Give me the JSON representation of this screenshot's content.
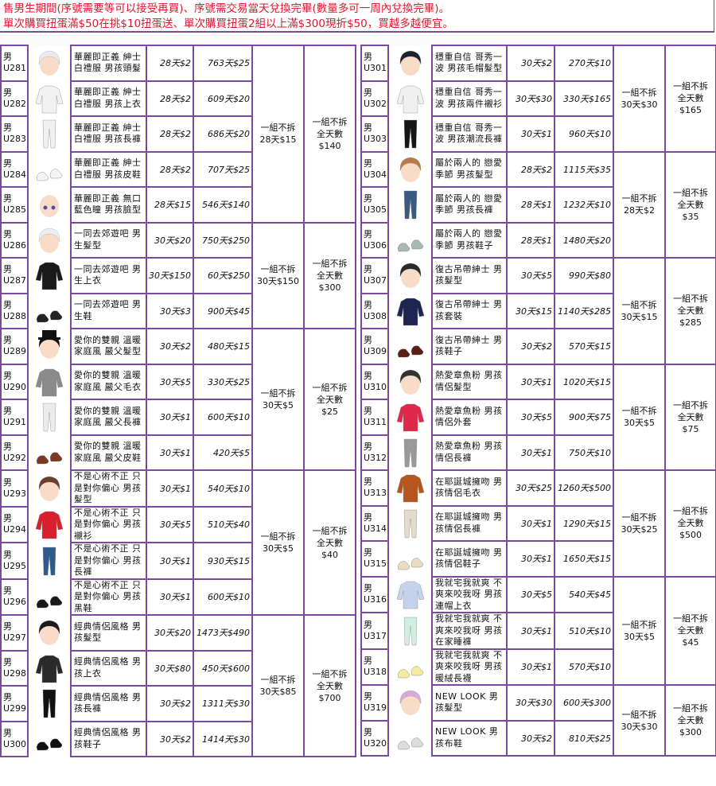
{
  "notice": {
    "line1": "售男生期間(序號需要等可以接受再買)、序號需交易當天兌換完畢(數量多可一周內兌換完畢)。",
    "line2": "單次購買扭蛋滿$50在挑$10扭蛋送、單次購買扭蛋2組以上滿$300現折$50，買越多越便宜。",
    "color": "#e2162e"
  },
  "border_color": "#7b4a9e",
  "tables": [
    {
      "groups": [
        {
          "set_price": [
            "一組不拆",
            "28天$15"
          ],
          "full_price": [
            "一組不拆",
            "全天數",
            "$140"
          ],
          "items": [
            {
              "gender": "男",
              "code": "U281",
              "name": "華麗即正義 紳士白禮服 男孩頭髮",
              "price_30": "28天$2",
              "price_full": "763天$25",
              "thumb": {
                "icon": "hair-icon",
                "color": "#e8e8f0"
              }
            },
            {
              "gender": "男",
              "code": "U282",
              "name": "華麗即正義 紳士白禮服 男孩上衣",
              "price_30": "28天$2",
              "price_full": "609天$20",
              "thumb": {
                "icon": "top-icon",
                "color": "#f2f2f2"
              }
            },
            {
              "gender": "男",
              "code": "U283",
              "name": "華麗即正義 紳士白禮服 男孩長褲",
              "price_30": "28天$2",
              "price_full": "686天$20",
              "thumb": {
                "icon": "pants-icon",
                "color": "#f0f0f0"
              }
            },
            {
              "gender": "男",
              "code": "U284",
              "name": "華麗即正義 紳士白禮服 男孩皮鞋",
              "price_30": "28天$2",
              "price_full": "707天$25",
              "thumb": {
                "icon": "shoes-icon",
                "color": "#f4f4f4"
              }
            },
            {
              "gender": "男",
              "code": "U285",
              "name": "華麗即正義 無口藍色瞳 男孩臉型",
              "price_30": "28天$15",
              "price_full": "546天$140",
              "thumb": {
                "icon": "face-icon",
                "color": "#f6c8a8"
              }
            }
          ]
        },
        {
          "set_price": [
            "一組不拆",
            "30天$150"
          ],
          "full_price": [
            "一組不拆",
            "全天數",
            "$300"
          ],
          "items": [
            {
              "gender": "男",
              "code": "U286",
              "name": "一同去郊遊吧 男生髮型",
              "price_30": "30天$20",
              "price_full": "750天$250",
              "thumb": {
                "icon": "hair-icon",
                "color": "#eeeeee"
              }
            },
            {
              "gender": "男",
              "code": "U287",
              "name": "一同去郊遊吧 男生上衣",
              "price_30": "30天$150",
              "price_full": "60天$250",
              "thumb": {
                "icon": "top-icon",
                "color": "#1a1a1a"
              }
            },
            {
              "gender": "男",
              "code": "U288",
              "name": "一同去郊遊吧 男生鞋",
              "price_30": "30天$3",
              "price_full": "900天$45",
              "thumb": {
                "icon": "shoes-icon",
                "color": "#222222"
              }
            }
          ]
        },
        {
          "set_price": [
            "一組不拆",
            "30天$5"
          ],
          "full_price": [
            "一組不拆",
            "全天數",
            "$25"
          ],
          "items": [
            {
              "gender": "男",
              "code": "U289",
              "name": "愛你的雙親 溫暖家庭風 嚴父髮型",
              "price_30": "30天$2",
              "price_full": "480天$15",
              "thumb": {
                "icon": "hat-icon",
                "color": "#111111"
              }
            },
            {
              "gender": "男",
              "code": "U290",
              "name": "愛你的雙親 溫暖家庭風 嚴父毛衣",
              "price_30": "30天$5",
              "price_full": "330天$25",
              "thumb": {
                "icon": "top-icon",
                "color": "#8a8a8a"
              }
            },
            {
              "gender": "男",
              "code": "U291",
              "name": "愛你的雙親 溫暖家庭風 嚴父長褲",
              "price_30": "30天$1",
              "price_full": "600天$10",
              "thumb": {
                "icon": "pants-icon",
                "color": "#ececec"
              }
            },
            {
              "gender": "男",
              "code": "U292",
              "name": "愛你的雙親 溫暖家庭風 嚴父皮鞋",
              "price_30": "30天$1",
              "price_full": "420天$5",
              "thumb": {
                "icon": "shoes-icon",
                "color": "#7a3a22"
              }
            }
          ]
        },
        {
          "set_price": [
            "一組不拆",
            "30天$5"
          ],
          "full_price": [
            "一組不拆",
            "全天數",
            "$40"
          ],
          "items": [
            {
              "gender": "男",
              "code": "U293",
              "name": "不是心術不正 只是對你偏心 男孩髮型",
              "price_30": "30天$1",
              "price_full": "540天$10",
              "thumb": {
                "icon": "hair-icon",
                "color": "#6b3f2a"
              }
            },
            {
              "gender": "男",
              "code": "U294",
              "name": "不是心術不正 只是對你偏心 男孩襯衫",
              "price_30": "30天$5",
              "price_full": "510天$40",
              "thumb": {
                "icon": "top-icon",
                "color": "#d8202c"
              }
            },
            {
              "gender": "男",
              "code": "U295",
              "name": "不是心術不正 只是對你偏心 男孩長褲",
              "price_30": "30天$1",
              "price_full": "930天$15",
              "thumb": {
                "icon": "pants-icon",
                "color": "#2e5a8c"
              }
            },
            {
              "gender": "男",
              "code": "U296",
              "name": "不是心術不正 只是對你偏心 男孩黑鞋",
              "price_30": "30天$1",
              "price_full": "600天$10",
              "thumb": {
                "icon": "shoes-icon",
                "color": "#1a1a1a"
              }
            }
          ]
        },
        {
          "set_price": [
            "一組不拆",
            "30天$85"
          ],
          "full_price": [
            "一組不拆",
            "全天數",
            "$700"
          ],
          "items": [
            {
              "gender": "男",
              "code": "U297",
              "name": "經典情侶風格 男孩髮型",
              "price_30": "30天$20",
              "price_full": "1473天$490",
              "thumb": {
                "icon": "hair-icon",
                "color": "#1c1c1c"
              }
            },
            {
              "gender": "男",
              "code": "U298",
              "name": "經典情侶風格 男孩上衣",
              "price_30": "30天$80",
              "price_full": "450天$600",
              "thumb": {
                "icon": "top-icon",
                "color": "#2a2a2a"
              }
            },
            {
              "gender": "男",
              "code": "U299",
              "name": "經典情侶風格 男孩長褲",
              "price_30": "30天$2",
              "price_full": "1311天$30",
              "thumb": {
                "icon": "pants-icon",
                "color": "#111111"
              }
            },
            {
              "gender": "男",
              "code": "U300",
              "name": "經典情侶風格 男孩鞋子",
              "price_30": "30天$2",
              "price_full": "1414天$30",
              "thumb": {
                "icon": "boots-icon",
                "color": "#111111"
              }
            }
          ]
        }
      ]
    },
    {
      "groups": [
        {
          "set_price": [
            "一組不拆",
            "30天$30"
          ],
          "full_price": [
            "一組不拆",
            "全天數",
            "$165"
          ],
          "items": [
            {
              "gender": "男",
              "code": "U301",
              "name": "穩重自信 哥秀一波 男孩毛帽髮型",
              "price_30": "30天$2",
              "price_full": "270天$10",
              "thumb": {
                "icon": "beanie-icon",
                "color": "#1d2233"
              }
            },
            {
              "gender": "男",
              "code": "U302",
              "name": "穩重自信 哥秀一波 男孩兩件襯衫",
              "price_30": "30天$30",
              "price_full": "330天$165",
              "thumb": {
                "icon": "top-icon",
                "color": "#f0f0f0"
              }
            },
            {
              "gender": "男",
              "code": "U303",
              "name": "穩重自信 哥秀一波 男孩潮流長褲",
              "price_30": "30天$1",
              "price_full": "960天$10",
              "thumb": {
                "icon": "pants-icon",
                "color": "#151515"
              }
            }
          ]
        },
        {
          "set_price": [
            "一組不拆",
            "28天$2"
          ],
          "full_price": [
            "一組不拆",
            "全天數",
            "$35"
          ],
          "items": [
            {
              "gender": "男",
              "code": "U304",
              "name": "屬於兩人的 戀愛季節 男孩髮型",
              "price_30": "28天$2",
              "price_full": "1115天$35",
              "thumb": {
                "icon": "hair-icon",
                "color": "#b87a48"
              }
            },
            {
              "gender": "男",
              "code": "U305",
              "name": "屬於兩人的 戀愛季節 男孩長褲",
              "price_30": "28天$1",
              "price_full": "1232天$10",
              "thumb": {
                "icon": "pants-icon",
                "color": "#3a5a80"
              }
            },
            {
              "gender": "男",
              "code": "U306",
              "name": "屬於兩人的 戀愛季節 男孩鞋子",
              "price_30": "28天$1",
              "price_full": "1480天$20",
              "thumb": {
                "icon": "shoes-icon",
                "color": "#a8b8b4"
              }
            }
          ]
        },
        {
          "set_price": [
            "一組不拆",
            "30天$15"
          ],
          "full_price": [
            "一組不拆",
            "全天數",
            "$285"
          ],
          "items": [
            {
              "gender": "男",
              "code": "U307",
              "name": "復古吊帶紳士 男孩髮型",
              "price_30": "30天$5",
              "price_full": "990天$80",
              "thumb": {
                "icon": "cap-icon",
                "color": "#2a2a2a"
              }
            },
            {
              "gender": "男",
              "code": "U308",
              "name": "復古吊帶紳士 男孩套裝",
              "price_30": "30天$15",
              "price_full": "1140天$285",
              "thumb": {
                "icon": "suit-icon",
                "color": "#1d2550"
              }
            },
            {
              "gender": "男",
              "code": "U309",
              "name": "復古吊帶紳士 男孩鞋子",
              "price_30": "30天$2",
              "price_full": "570天$15",
              "thumb": {
                "icon": "shoes-icon",
                "color": "#5a1e14"
              }
            }
          ]
        },
        {
          "set_price": [
            "一組不拆",
            "30天$5"
          ],
          "full_price": [
            "一組不拆",
            "全天數",
            "$75"
          ],
          "items": [
            {
              "gender": "男",
              "code": "U310",
              "name": "熱愛章魚粉 男孩情侶髮型",
              "price_30": "30天$1",
              "price_full": "1020天$15",
              "thumb": {
                "icon": "hair-icon",
                "color": "#333333"
              }
            },
            {
              "gender": "男",
              "code": "U311",
              "name": "熱愛章魚粉 男孩情侶外套",
              "price_30": "30天$5",
              "price_full": "900天$75",
              "thumb": {
                "icon": "jacket-icon",
                "color": "#e0284a"
              }
            },
            {
              "gender": "男",
              "code": "U312",
              "name": "熱愛章魚粉 男孩情侶長褲",
              "price_30": "30天$1",
              "price_full": "750天$10",
              "thumb": {
                "icon": "pants-icon",
                "color": "#9a9a9a"
              }
            }
          ]
        },
        {
          "set_price": [
            "一組不拆",
            "30天$25"
          ],
          "full_price": [
            "一組不拆",
            "全天數",
            "$500"
          ],
          "items": [
            {
              "gender": "男",
              "code": "U313",
              "name": "在耶誕城擁吻 男孩情侶毛衣",
              "price_30": "30天$25",
              "price_full": "1260天$500",
              "thumb": {
                "icon": "sweater-icon",
                "color": "#b4561e"
              }
            },
            {
              "gender": "男",
              "code": "U314",
              "name": "在耶誕城擁吻 男孩情侶長褲",
              "price_30": "30天$1",
              "price_full": "1290天$15",
              "thumb": {
                "icon": "pants-icon",
                "color": "#e4dace"
              }
            },
            {
              "gender": "男",
              "code": "U315",
              "name": "在耶誕城擁吻 男孩情侶鞋子",
              "price_30": "30天$1",
              "price_full": "1650天$15",
              "thumb": {
                "icon": "shoes-icon",
                "color": "#eadcbe"
              }
            }
          ]
        },
        {
          "set_price": [
            "一組不拆",
            "30天$5"
          ],
          "full_price": [
            "一組不拆",
            "全天數",
            "$45"
          ],
          "items": [
            {
              "gender": "男",
              "code": "U316",
              "name": "我就宅我就爽 不爽來咬我呀 男孩連帽上衣",
              "price_30": "30天$5",
              "price_full": "540天$45",
              "thumb": {
                "icon": "hoodie-icon",
                "color": "#c4d2ec"
              }
            },
            {
              "gender": "男",
              "code": "U317",
              "name": "我就宅我就爽 不爽來咬我呀 男孩在家睡褲",
              "price_30": "30天$1",
              "price_full": "510天$10",
              "thumb": {
                "icon": "pants-icon",
                "color": "#cfeee0"
              }
            },
            {
              "gender": "男",
              "code": "U318",
              "name": "我就宅我就爽 不爽來咬我呀 男孩暖絨長襪",
              "price_30": "30天$1",
              "price_full": "570天$10",
              "thumb": {
                "icon": "socks-icon",
                "color": "#f4eaa0"
              }
            }
          ]
        },
        {
          "set_price": [
            "一組不拆",
            "30天$30"
          ],
          "full_price": [
            "一組不拆",
            "全天數",
            "$300"
          ],
          "items": [
            {
              "gender": "男",
              "code": "U319",
              "name": "NEW LOOK 男孩髮型",
              "price_30": "30天$30",
              "price_full": "600天$300",
              "thumb": {
                "icon": "hair-icon",
                "color": "#d8a8d8"
              }
            },
            {
              "gender": "男",
              "code": "U320",
              "name": "NEW LOOK 男孩布鞋",
              "price_30": "30天$2",
              "price_full": "810天$25",
              "thumb": {
                "icon": "shoes-icon",
                "color": "#dcdcdc"
              }
            }
          ]
        }
      ]
    }
  ]
}
